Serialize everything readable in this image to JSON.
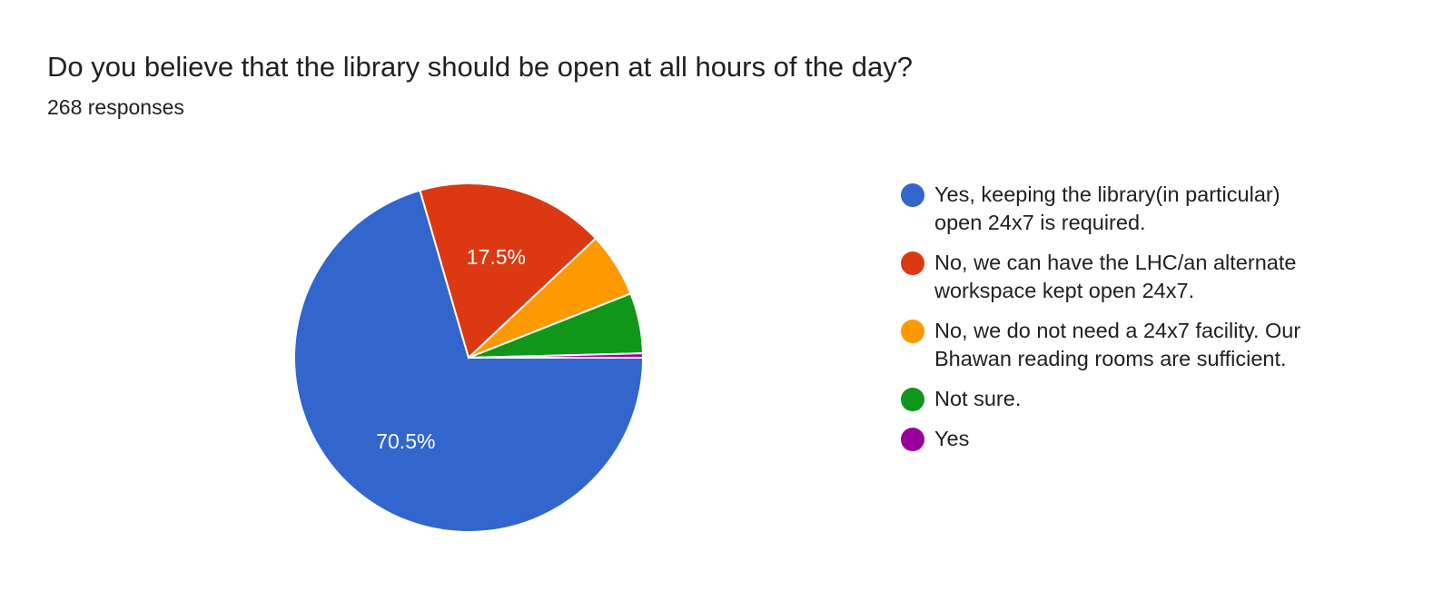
{
  "chart_data": {
    "type": "pie",
    "title": "Do you believe that the library should be open at all hours of the day?",
    "subtitle": "268 responses",
    "legend_position": "right",
    "slices": [
      {
        "label": "Yes, keeping the library(in particular) open 24x7 is required.",
        "value": 70.5,
        "data_label": "70.5%",
        "color": "#3366cc"
      },
      {
        "label": "No, we can have the LHC/an alternate workspace kept open 24x7.",
        "value": 17.5,
        "data_label": "17.5%",
        "color": "#dc3912"
      },
      {
        "label": "No, we do not need a 24x7 facility. Our Bhawan reading rooms are sufficient.",
        "value": 6.0,
        "data_label": "",
        "color": "#ff9900"
      },
      {
        "label": "Not sure.",
        "value": 5.6,
        "data_label": "",
        "color": "#109618"
      },
      {
        "label": "Yes",
        "value": 0.4,
        "data_label": "",
        "color": "#990099"
      }
    ]
  }
}
